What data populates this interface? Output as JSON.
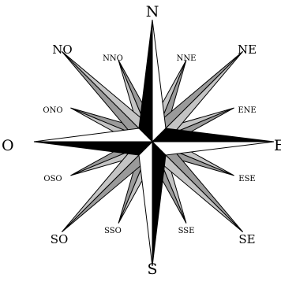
{
  "compass": {
    "cardinal": {
      "n": "N",
      "e": "E",
      "s": "S",
      "w": "O"
    },
    "intercardinal": {
      "ne": "NE",
      "se": "SE",
      "sw": "SO",
      "nw": "NO"
    },
    "secondary": {
      "nne": "NNE",
      "ene": "ENE",
      "ese": "ESE",
      "sse": "SSE",
      "sso": "SSO",
      "oso": "OSO",
      "ono": "ONO",
      "nno": "NNO"
    }
  },
  "colors": {
    "outline": "#000000",
    "dark": "#000000",
    "light": "#ffffff",
    "mid_gray": "#9a9a9a",
    "light_gray": "#c4c4c4"
  }
}
